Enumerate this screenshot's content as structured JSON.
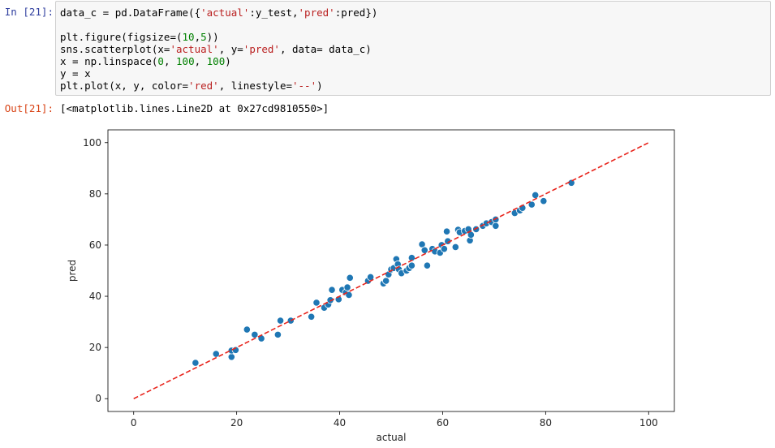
{
  "cell_in": {
    "prompt": "In [21]:",
    "lines": [
      [
        "data_c = pd.DataFrame({",
        {
          "s": "'actual'"
        },
        ":y_test,",
        {
          "s": "'pred'"
        },
        ":pred})"
      ],
      [],
      [
        "plt.figure(figsize=(",
        {
          "n": "10"
        },
        ",",
        {
          "n": "5"
        },
        "))"
      ],
      [
        "sns.scatterplot(x=",
        {
          "s": "'actual'"
        },
        ", y=",
        {
          "s": "'pred'"
        },
        ", data= data_c)"
      ],
      [
        "x = np.linspace(",
        {
          "n": "0"
        },
        ", ",
        {
          "n": "100"
        },
        ", ",
        {
          "n": "100"
        },
        ")"
      ],
      [
        "y = x"
      ],
      [
        "plt.plot(x, y, color=",
        {
          "s": "'red'"
        },
        ", linestyle=",
        {
          "s": "'--'"
        },
        ")"
      ]
    ]
  },
  "cell_out": {
    "prompt": "Out[21]:",
    "text": "[<matplotlib.lines.Line2D at 0x27cd9810550>]"
  },
  "colors": {
    "point": "#1f77b4",
    "point_edge": "#ffffff",
    "line": "#e8241c"
  },
  "chart_data": {
    "type": "scatter",
    "xlabel": "actual",
    "ylabel": "pred",
    "xlim": [
      -5,
      105
    ],
    "ylim": [
      -5,
      105
    ],
    "xticks": [
      0,
      20,
      40,
      60,
      80,
      100
    ],
    "yticks": [
      0,
      20,
      40,
      60,
      80,
      100
    ],
    "grid": false,
    "series": [
      {
        "points": [
          [
            12,
            14
          ],
          [
            16,
            17.5
          ],
          [
            19,
            16.3
          ],
          [
            19,
            18.8
          ],
          [
            19.8,
            19
          ],
          [
            22,
            27
          ],
          [
            23.5,
            25
          ],
          [
            24.8,
            23.5
          ],
          [
            28,
            25
          ],
          [
            28.5,
            30.5
          ],
          [
            30.5,
            30.5
          ],
          [
            34.5,
            32
          ],
          [
            35.5,
            37.5
          ],
          [
            37,
            35.5
          ],
          [
            37.8,
            36.8
          ],
          [
            38.2,
            38.5
          ],
          [
            38.5,
            42.5
          ],
          [
            39.8,
            38.8
          ],
          [
            40.5,
            42.5
          ],
          [
            41.2,
            41.5
          ],
          [
            41.5,
            43.5
          ],
          [
            41.8,
            40.5
          ],
          [
            42,
            47.2
          ],
          [
            45.5,
            46
          ],
          [
            46,
            47.5
          ],
          [
            48.5,
            45
          ],
          [
            49,
            46
          ],
          [
            49.5,
            48.5
          ],
          [
            50,
            50.5
          ],
          [
            50.5,
            51
          ],
          [
            51,
            54.5
          ],
          [
            51.3,
            52.5
          ],
          [
            51.5,
            50.5
          ],
          [
            52,
            49
          ],
          [
            53,
            50
          ],
          [
            53.5,
            51
          ],
          [
            54,
            52
          ],
          [
            54,
            55
          ],
          [
            56,
            60.3
          ],
          [
            56.5,
            58
          ],
          [
            57,
            52
          ],
          [
            58,
            58.5
          ],
          [
            58.5,
            57.5
          ],
          [
            59.5,
            57
          ],
          [
            59.8,
            60
          ],
          [
            60.3,
            58.5
          ],
          [
            60.8,
            65.3
          ],
          [
            61,
            61.5
          ],
          [
            62.5,
            59.2
          ],
          [
            63,
            66
          ],
          [
            63.3,
            65
          ],
          [
            64.3,
            65.5
          ],
          [
            65,
            66.2
          ],
          [
            65.3,
            61.8
          ],
          [
            65.5,
            64
          ],
          [
            66.5,
            66.2
          ],
          [
            67.8,
            67.5
          ],
          [
            68.5,
            68.5
          ],
          [
            69.5,
            69
          ],
          [
            70.3,
            67.5
          ],
          [
            70.3,
            70
          ],
          [
            74,
            72.5
          ],
          [
            75,
            73.5
          ],
          [
            75.5,
            74.5
          ],
          [
            77.3,
            75.8
          ],
          [
            78,
            79.5
          ],
          [
            79.6,
            77.2
          ],
          [
            85,
            84.3
          ]
        ]
      },
      {
        "style": "dashed",
        "x": [
          0,
          100
        ],
        "y": [
          0,
          100
        ]
      }
    ]
  }
}
